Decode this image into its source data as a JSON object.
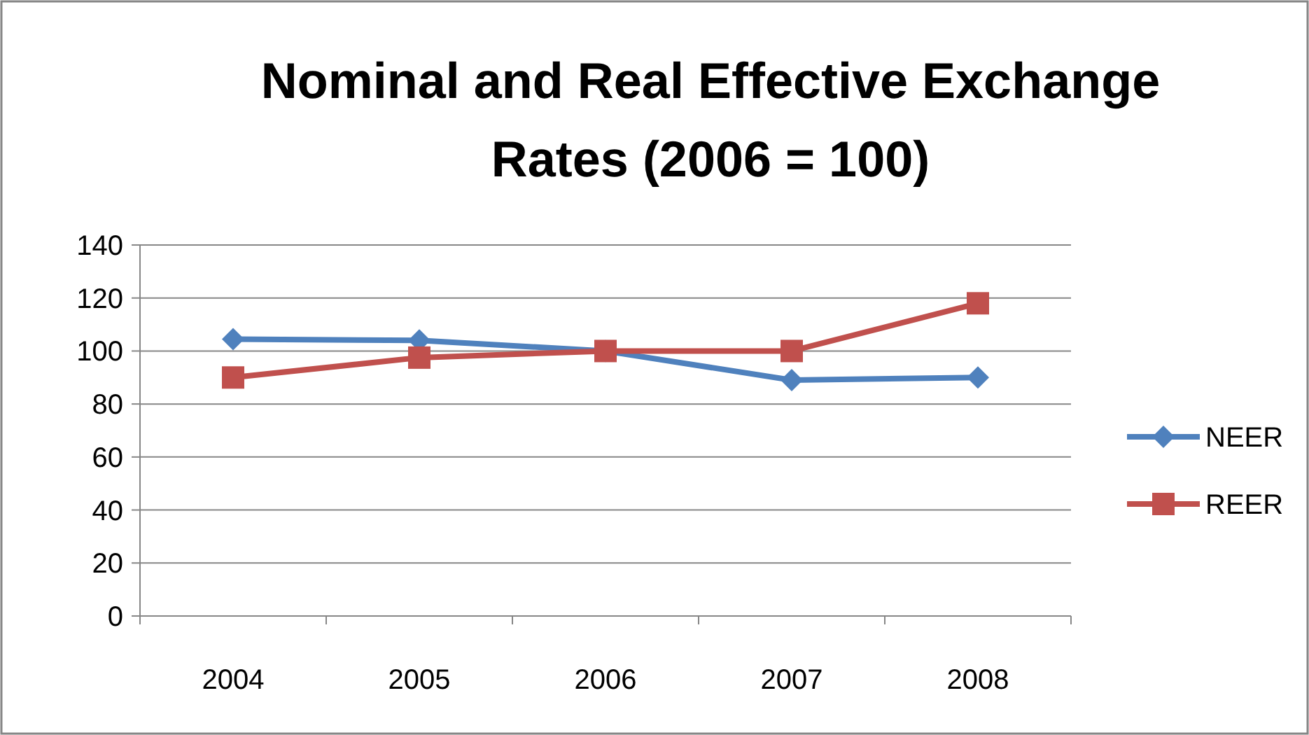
{
  "chart_data": {
    "type": "line",
    "title": "Nominal and Real Effective Exchange Rates (2006 = 100)",
    "categories": [
      "2004",
      "2005",
      "2006",
      "2007",
      "2008"
    ],
    "series": [
      {
        "name": "NEER",
        "color": "#4f81bd",
        "marker": "diamond",
        "values": [
          104.5,
          104,
          100,
          89,
          90
        ]
      },
      {
        "name": "REER",
        "color": "#c0504d",
        "marker": "square",
        "values": [
          90,
          97.5,
          100,
          100,
          118
        ]
      }
    ],
    "ylim": [
      0,
      140
    ],
    "yticks": [
      0,
      20,
      40,
      60,
      80,
      100,
      120,
      140
    ],
    "grid": "y",
    "legend": "right"
  }
}
